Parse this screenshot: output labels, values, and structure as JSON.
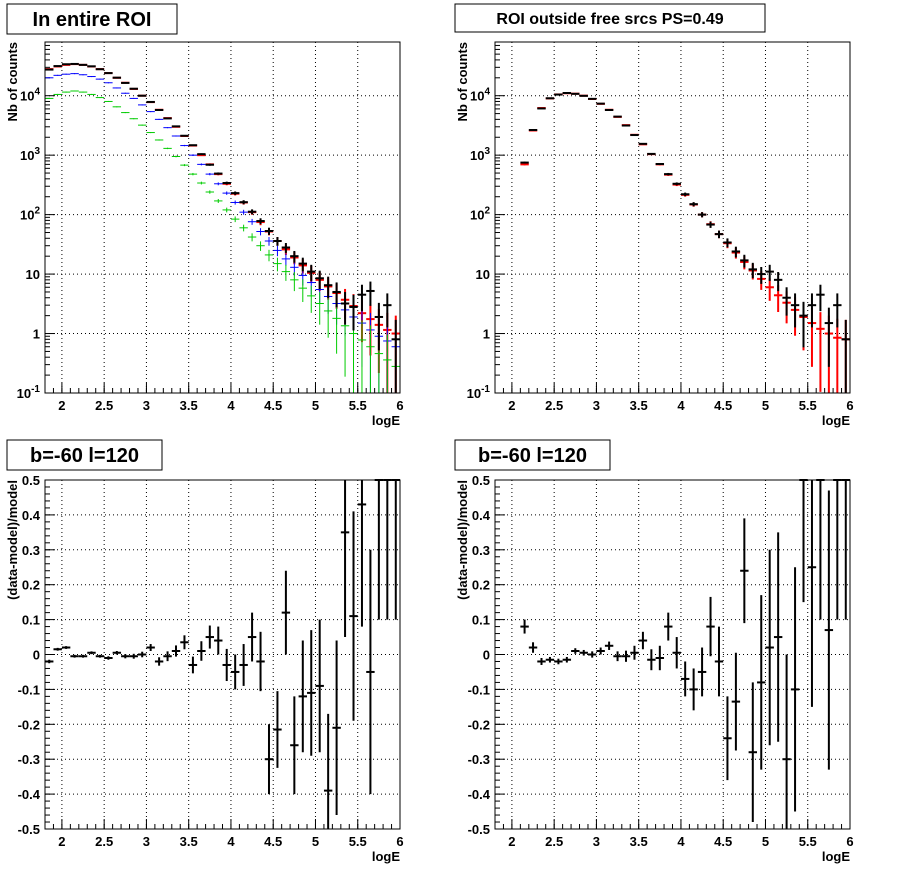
{
  "colors": {
    "black": "#000000",
    "red": "#ff0000",
    "blue": "#0000ff",
    "green": "#00cc00"
  },
  "chart_data": [
    {
      "type": "scatter",
      "title": "In entire ROI",
      "xlabel": "logE",
      "ylabel": "Nb of counts",
      "xlim": [
        1.8,
        6.0
      ],
      "ylim": [
        0.1,
        80000
      ],
      "log_y": true,
      "grid": true,
      "x_tick_labels": [
        "2",
        "2.5",
        "3",
        "3.5",
        "4",
        "4.5",
        "5",
        "5.5",
        "6"
      ],
      "y_tick_labels": [
        "10^-1",
        "1",
        "10",
        "10^2",
        "10^3",
        "10^4"
      ],
      "series": [
        {
          "color": "red",
          "x": [
            1.85,
            1.95,
            2.05,
            2.15,
            2.25,
            2.35,
            2.45,
            2.55,
            2.65,
            2.75,
            2.85,
            2.95,
            3.05,
            3.15,
            3.25,
            3.35,
            3.45,
            3.55,
            3.65,
            3.75,
            3.85,
            3.95,
            4.05,
            4.15,
            4.25,
            4.35,
            4.45,
            4.55,
            4.65,
            4.75,
            4.85,
            4.95,
            5.05,
            5.15,
            5.25,
            5.35,
            5.45,
            5.55,
            5.65,
            5.75,
            5.85,
            5.95
          ],
          "y": [
            28000,
            31000,
            33000,
            34000,
            33000,
            31000,
            28000,
            24000,
            20000,
            16500,
            13000,
            10000,
            7800,
            5800,
            4200,
            3000,
            2100,
            1450,
            1000,
            700,
            480,
            330,
            225,
            160,
            110,
            75,
            52,
            36,
            26,
            19,
            14,
            10.5,
            8,
            6.2,
            4.8,
            3.7,
            2.9,
            2.2,
            1.75,
            1.4,
            1.15,
            1.0
          ]
        },
        {
          "color": "blue",
          "x": [
            1.85,
            1.95,
            2.05,
            2.15,
            2.25,
            2.35,
            2.45,
            2.55,
            2.65,
            2.75,
            2.85,
            2.95,
            3.05,
            3.15,
            3.25,
            3.35,
            3.45,
            3.55,
            3.65,
            3.75,
            3.85,
            3.95,
            4.05,
            4.15,
            4.25,
            4.35,
            4.45,
            4.55,
            4.65,
            4.75,
            4.85,
            4.95,
            5.05,
            5.15,
            5.25,
            5.35,
            5.45,
            5.55,
            5.65,
            5.75,
            5.85,
            5.95
          ],
          "y": [
            20000,
            22000,
            23000,
            23500,
            22500,
            21000,
            19000,
            16500,
            13500,
            11000,
            9000,
            7000,
            5400,
            4000,
            2900,
            2100,
            1450,
            1000,
            700,
            480,
            330,
            230,
            160,
            110,
            76,
            52,
            36,
            25,
            18,
            13,
            9.5,
            7.2,
            5.5,
            4.2,
            3.2,
            2.5,
            1.9,
            1.5,
            1.15,
            0.9,
            0.75,
            0.6
          ]
        },
        {
          "color": "green",
          "x": [
            1.85,
            1.95,
            2.05,
            2.15,
            2.25,
            2.35,
            2.45,
            2.55,
            2.65,
            2.75,
            2.85,
            2.95,
            3.05,
            3.15,
            3.25,
            3.35,
            3.45,
            3.55,
            3.65,
            3.75,
            3.85,
            3.95,
            4.05,
            4.15,
            4.25,
            4.35,
            4.45,
            4.55,
            4.65,
            4.75,
            4.85,
            4.95,
            5.05,
            5.15,
            5.25,
            5.35,
            5.45,
            5.55,
            5.65,
            5.75,
            5.85,
            5.95
          ],
          "y": [
            9000,
            10500,
            11500,
            12000,
            11500,
            10500,
            9300,
            8000,
            6500,
            5200,
            4100,
            3200,
            2400,
            1800,
            1300,
            950,
            680,
            480,
            340,
            240,
            170,
            120,
            84,
            60,
            42,
            30,
            21,
            15,
            11,
            8,
            5.8,
            4.3,
            3.2,
            2.4,
            1.8,
            1.35,
            1.0,
            0.78,
            0.6,
            0.46,
            0.36,
            0.28
          ]
        },
        {
          "color": "black",
          "x": [
            1.85,
            1.95,
            2.05,
            2.15,
            2.25,
            2.35,
            2.45,
            2.55,
            2.65,
            2.75,
            2.85,
            2.95,
            3.05,
            3.15,
            3.25,
            3.35,
            3.45,
            3.55,
            3.65,
            3.75,
            3.85,
            3.95,
            4.05,
            4.15,
            4.25,
            4.35,
            4.45,
            4.55,
            4.65,
            4.75,
            4.85,
            4.95,
            5.05,
            5.15,
            5.25,
            5.35,
            5.45,
            5.55,
            5.65,
            5.75,
            5.85,
            5.95
          ],
          "y": [
            27500,
            31500,
            33800,
            34200,
            33000,
            31200,
            27900,
            24000,
            20100,
            16400,
            13100,
            10000,
            7850,
            5750,
            4150,
            3050,
            2120,
            1470,
            1040,
            690,
            490,
            340,
            230,
            162,
            112,
            78,
            53,
            36,
            28,
            20,
            15,
            11,
            8.5,
            6.5,
            5,
            3.2,
            2.8,
            4.5,
            5.2,
            1.9,
            3,
            0.8
          ]
        }
      ]
    },
    {
      "type": "scatter",
      "title": "ROI outside free srcs PS=0.49",
      "xlabel": "logE",
      "ylabel": "Nb of counts",
      "xlim": [
        1.8,
        6.0
      ],
      "ylim": [
        0.1,
        80000
      ],
      "log_y": true,
      "grid": true,
      "x_tick_labels": [
        "2",
        "2.5",
        "3",
        "3.5",
        "4",
        "4.5",
        "5",
        "5.5",
        "6"
      ],
      "y_tick_labels": [
        "10^-1",
        "1",
        "10",
        "10^2",
        "10^3",
        "10^4"
      ],
      "series": [
        {
          "color": "red",
          "x": [
            2.15,
            2.25,
            2.35,
            2.45,
            2.55,
            2.65,
            2.75,
            2.85,
            2.95,
            3.05,
            3.15,
            3.25,
            3.35,
            3.45,
            3.55,
            3.65,
            3.75,
            3.85,
            3.95,
            4.05,
            4.15,
            4.25,
            4.35,
            4.45,
            4.55,
            4.65,
            4.75,
            4.85,
            4.95,
            5.05,
            5.15,
            5.25,
            5.35,
            5.45,
            5.55,
            5.65,
            5.75,
            5.85,
            5.95
          ],
          "y": [
            700,
            2600,
            6200,
            9000,
            10500,
            11000,
            10800,
            10000,
            8800,
            7300,
            5800,
            4400,
            3200,
            2200,
            1520,
            1040,
            700,
            470,
            320,
            215,
            148,
            100,
            69,
            47,
            33,
            23,
            16,
            11.5,
            8.3,
            6,
            4.4,
            3.3,
            2.5,
            1.9,
            1.5,
            1.2,
            1.0,
            0.85,
            0.8
          ]
        },
        {
          "color": "black",
          "x": [
            2.15,
            2.25,
            2.35,
            2.45,
            2.55,
            2.65,
            2.75,
            2.85,
            2.95,
            3.05,
            3.15,
            3.25,
            3.35,
            3.45,
            3.55,
            3.65,
            3.75,
            3.85,
            3.95,
            4.05,
            4.15,
            4.25,
            4.35,
            4.45,
            4.55,
            4.65,
            4.75,
            4.85,
            4.95,
            5.05,
            5.15,
            5.25,
            5.35,
            5.45,
            5.55,
            5.65,
            5.75,
            5.85,
            5.95
          ],
          "y": [
            750,
            2650,
            6100,
            9050,
            10450,
            11100,
            10750,
            9950,
            8850,
            7350,
            5750,
            4450,
            3150,
            2180,
            1550,
            1050,
            710,
            480,
            330,
            220,
            150,
            100,
            68,
            47,
            34,
            24,
            17,
            12,
            10,
            11,
            8,
            4,
            3,
            2,
            3,
            4.5,
            1.5,
            3,
            0.8
          ]
        }
      ]
    },
    {
      "type": "scatter",
      "title": "b=-60 l=120",
      "xlabel": "logE",
      "ylabel": "(data-model)/model",
      "xlim": [
        1.8,
        6.0
      ],
      "ylim": [
        -0.5,
        0.5
      ],
      "grid": true,
      "x_tick_labels": [
        "2",
        "2.5",
        "3",
        "3.5",
        "4",
        "4.5",
        "5",
        "5.5",
        "6"
      ],
      "y_tick_labels": [
        "-0.5",
        "-0.4",
        "-0.3",
        "-0.2",
        "-0.1",
        "0",
        "0.1",
        "0.2",
        "0.3",
        "0.4",
        "0.5"
      ],
      "series": [
        {
          "color": "black",
          "x": [
            1.85,
            1.95,
            2.05,
            2.15,
            2.25,
            2.35,
            2.45,
            2.55,
            2.65,
            2.75,
            2.85,
            2.95,
            3.05,
            3.15,
            3.25,
            3.35,
            3.45,
            3.55,
            3.65,
            3.75,
            3.85,
            3.95,
            4.05,
            4.15,
            4.25,
            4.35,
            4.45,
            4.55,
            4.65,
            4.75,
            4.85,
            4.95,
            5.05,
            5.15,
            5.25,
            5.35,
            5.45,
            5.55,
            5.65,
            5.75,
            5.85,
            5.95
          ],
          "y": [
            -0.02,
            0.015,
            0.02,
            -0.005,
            -0.005,
            0.005,
            -0.005,
            -0.01,
            0.005,
            -0.005,
            -0.005,
            0.0,
            0.02,
            -0.02,
            -0.005,
            0.01,
            0.035,
            -0.03,
            0.01,
            0.05,
            0.04,
            -0.03,
            -0.05,
            -0.03,
            0.05,
            -0.02,
            -0.3,
            -0.215,
            0.12,
            -0.26,
            -0.12,
            -0.11,
            -0.09,
            -0.39,
            -0.21,
            0.35,
            0.11,
            0.43,
            -0.05,
            0.5,
            0.5,
            0.5
          ],
          "err": [
            0.005,
            0.004,
            0.004,
            0.004,
            0.004,
            0.004,
            0.004,
            0.005,
            0.005,
            0.006,
            0.007,
            0.008,
            0.01,
            0.012,
            0.014,
            0.016,
            0.02,
            0.024,
            0.028,
            0.033,
            0.04,
            0.046,
            0.05,
            0.06,
            0.07,
            0.085,
            0.1,
            0.11,
            0.12,
            0.14,
            0.16,
            0.18,
            0.19,
            0.22,
            0.25,
            0.3,
            0.3,
            0.35,
            0.35,
            0.4,
            0.4,
            0.4
          ]
        }
      ]
    },
    {
      "type": "scatter",
      "title": "b=-60 l=120",
      "xlabel": "logE",
      "ylabel": "(data-model)/model",
      "xlim": [
        1.8,
        6.0
      ],
      "ylim": [
        -0.5,
        0.5
      ],
      "grid": true,
      "x_tick_labels": [
        "2",
        "2.5",
        "3",
        "3.5",
        "4",
        "4.5",
        "5",
        "5.5",
        "6"
      ],
      "y_tick_labels": [
        "-0.5",
        "-0.4",
        "-0.3",
        "-0.2",
        "-0.1",
        "0",
        "0.1",
        "0.2",
        "0.3",
        "0.4",
        "0.5"
      ],
      "series": [
        {
          "color": "black",
          "x": [
            2.15,
            2.25,
            2.35,
            2.45,
            2.55,
            2.65,
            2.75,
            2.85,
            2.95,
            3.05,
            3.15,
            3.25,
            3.35,
            3.45,
            3.55,
            3.65,
            3.75,
            3.85,
            3.95,
            4.05,
            4.15,
            4.25,
            4.35,
            4.45,
            4.55,
            4.65,
            4.75,
            4.85,
            4.95,
            5.05,
            5.15,
            5.25,
            5.35,
            5.45,
            5.55,
            5.65,
            5.75,
            5.85,
            5.95
          ],
          "y": [
            0.08,
            0.02,
            -0.02,
            -0.015,
            -0.02,
            -0.015,
            0.01,
            0.005,
            0.0,
            0.01,
            0.025,
            -0.005,
            -0.005,
            0.005,
            0.04,
            -0.015,
            -0.01,
            0.08,
            0.005,
            -0.07,
            -0.1,
            -0.05,
            0.08,
            -0.02,
            -0.24,
            -0.135,
            0.24,
            -0.28,
            -0.08,
            0.02,
            0.05,
            -0.3,
            -0.1,
            0.5,
            0.25,
            0.5,
            0.07,
            0.5,
            0.5
          ],
          "err": [
            0.02,
            0.015,
            0.01,
            0.008,
            0.008,
            0.008,
            0.008,
            0.008,
            0.009,
            0.01,
            0.012,
            0.014,
            0.016,
            0.02,
            0.025,
            0.03,
            0.035,
            0.04,
            0.045,
            0.05,
            0.06,
            0.07,
            0.085,
            0.1,
            0.12,
            0.14,
            0.15,
            0.2,
            0.25,
            0.28,
            0.3,
            0.3,
            0.35,
            0.35,
            0.4,
            0.4,
            0.4,
            0.4,
            0.4
          ]
        }
      ]
    }
  ]
}
